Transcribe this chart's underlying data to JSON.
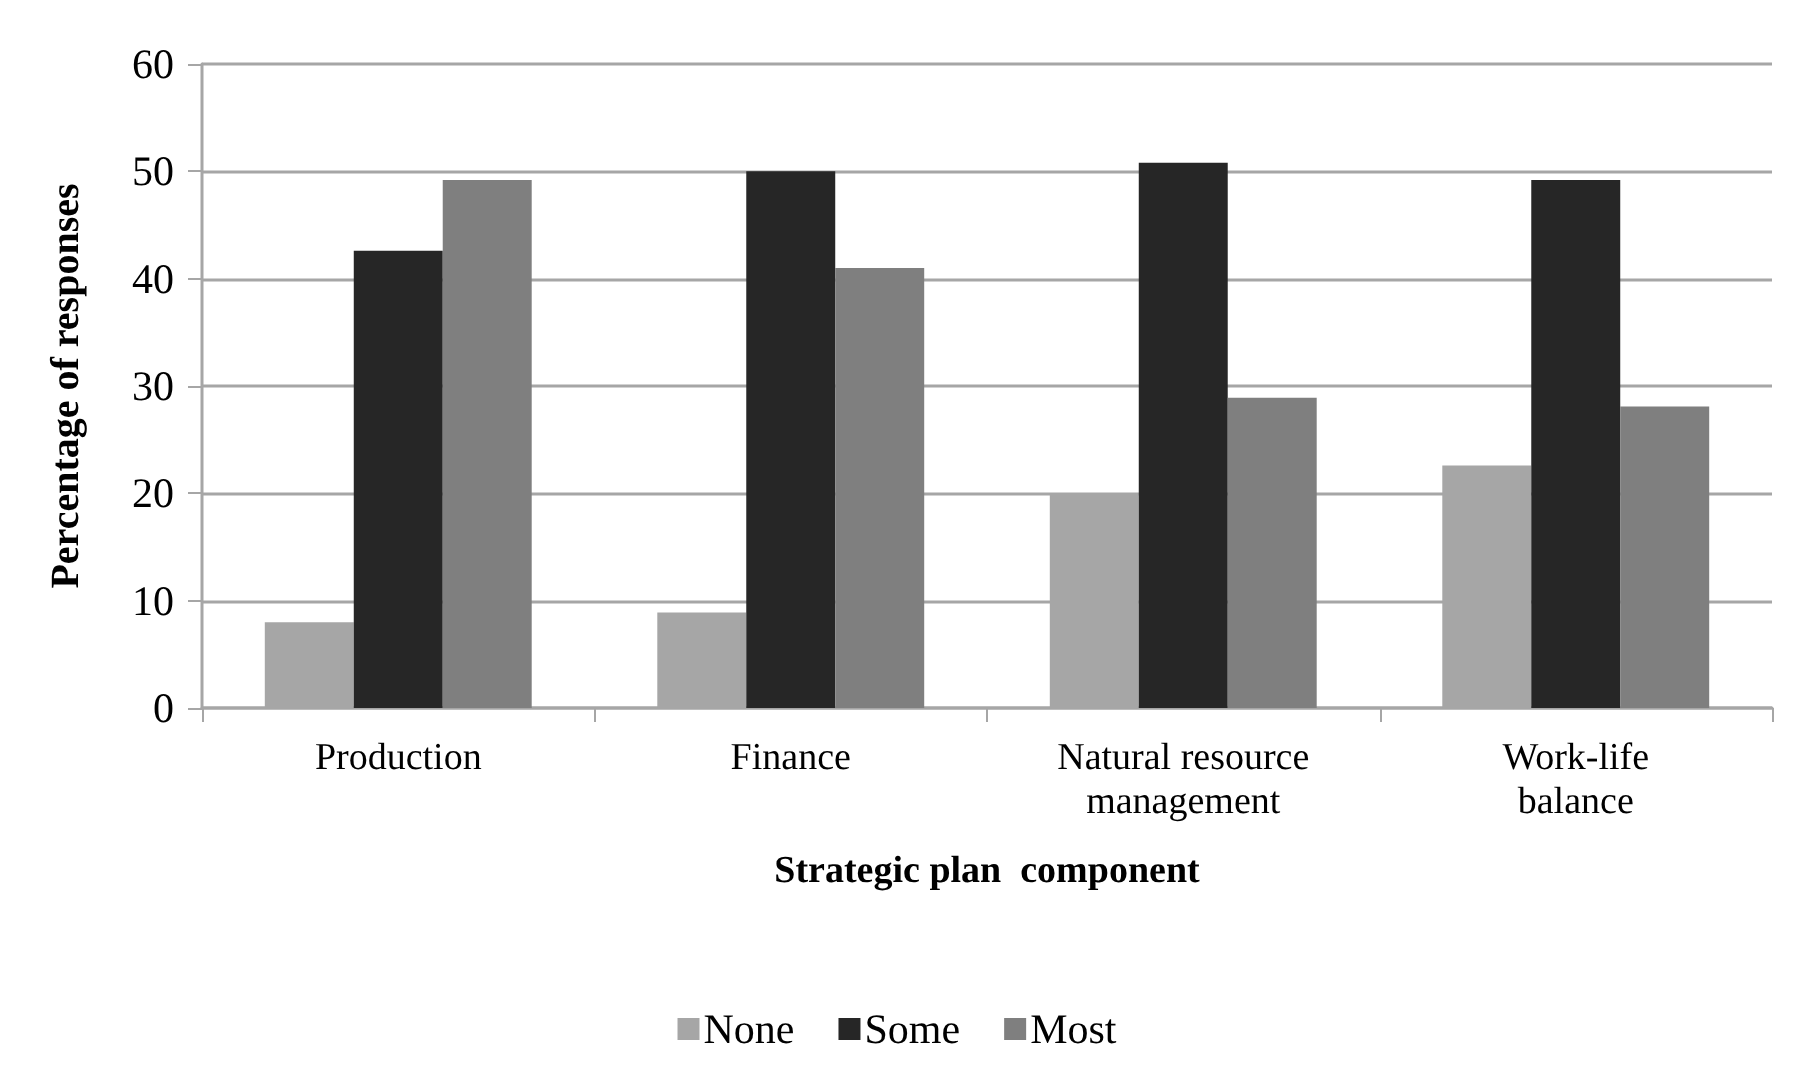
{
  "chart_data": {
    "type": "bar",
    "categories": [
      "Production",
      "Finance",
      "Natural resource\nmanagement",
      "Work-life\nbalance"
    ],
    "series": [
      {
        "name": "None",
        "color": "#a6a6a6",
        "values": [
          8.0,
          8.9,
          20.0,
          22.6
        ]
      },
      {
        "name": "Some",
        "color": "#262626",
        "values": [
          42.6,
          50.0,
          50.8,
          49.2
        ]
      },
      {
        "name": "Most",
        "color": "#7f7f7f",
        "values": [
          49.2,
          41.0,
          28.9,
          28.1
        ]
      }
    ],
    "xlabel": "Strategic plan  component",
    "ylabel": "Percentage of responses",
    "ylim": [
      0,
      60
    ],
    "yticks": [
      0,
      10,
      20,
      30,
      40,
      50,
      60
    ],
    "grid": "y",
    "legend": "bottom"
  }
}
